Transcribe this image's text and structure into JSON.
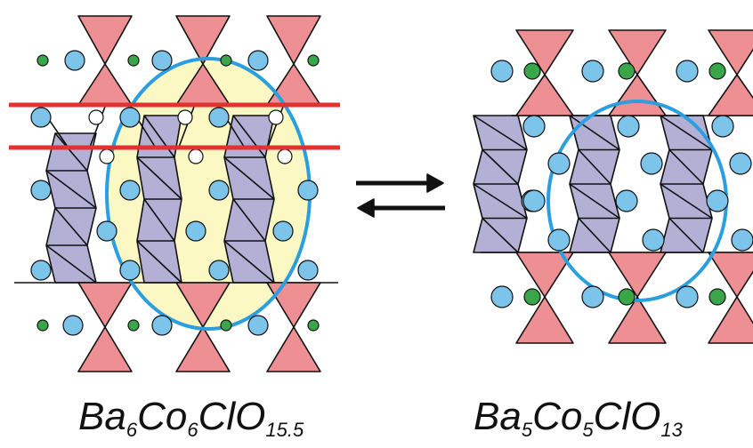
{
  "left_formula": {
    "parts": [
      "Ba",
      "6",
      "Co",
      "6",
      "ClO",
      "15.5"
    ]
  },
  "right_formula": {
    "parts": [
      "Ba",
      "5",
      "Co",
      "5",
      "ClO",
      "13"
    ]
  },
  "colors": {
    "ba_atom": "#7cc4ea",
    "cl_atom": "#3aa64a",
    "co_face_octahedra": "#b3afd5",
    "co_tetrahedra": "#ee8f93",
    "highlight_fill": "#fcf8c4",
    "highlight_outline": "#2b9ee0",
    "cut_lines": "#e0322f",
    "arrows": "#111111"
  },
  "arrows": "reversible-equilibrium"
}
